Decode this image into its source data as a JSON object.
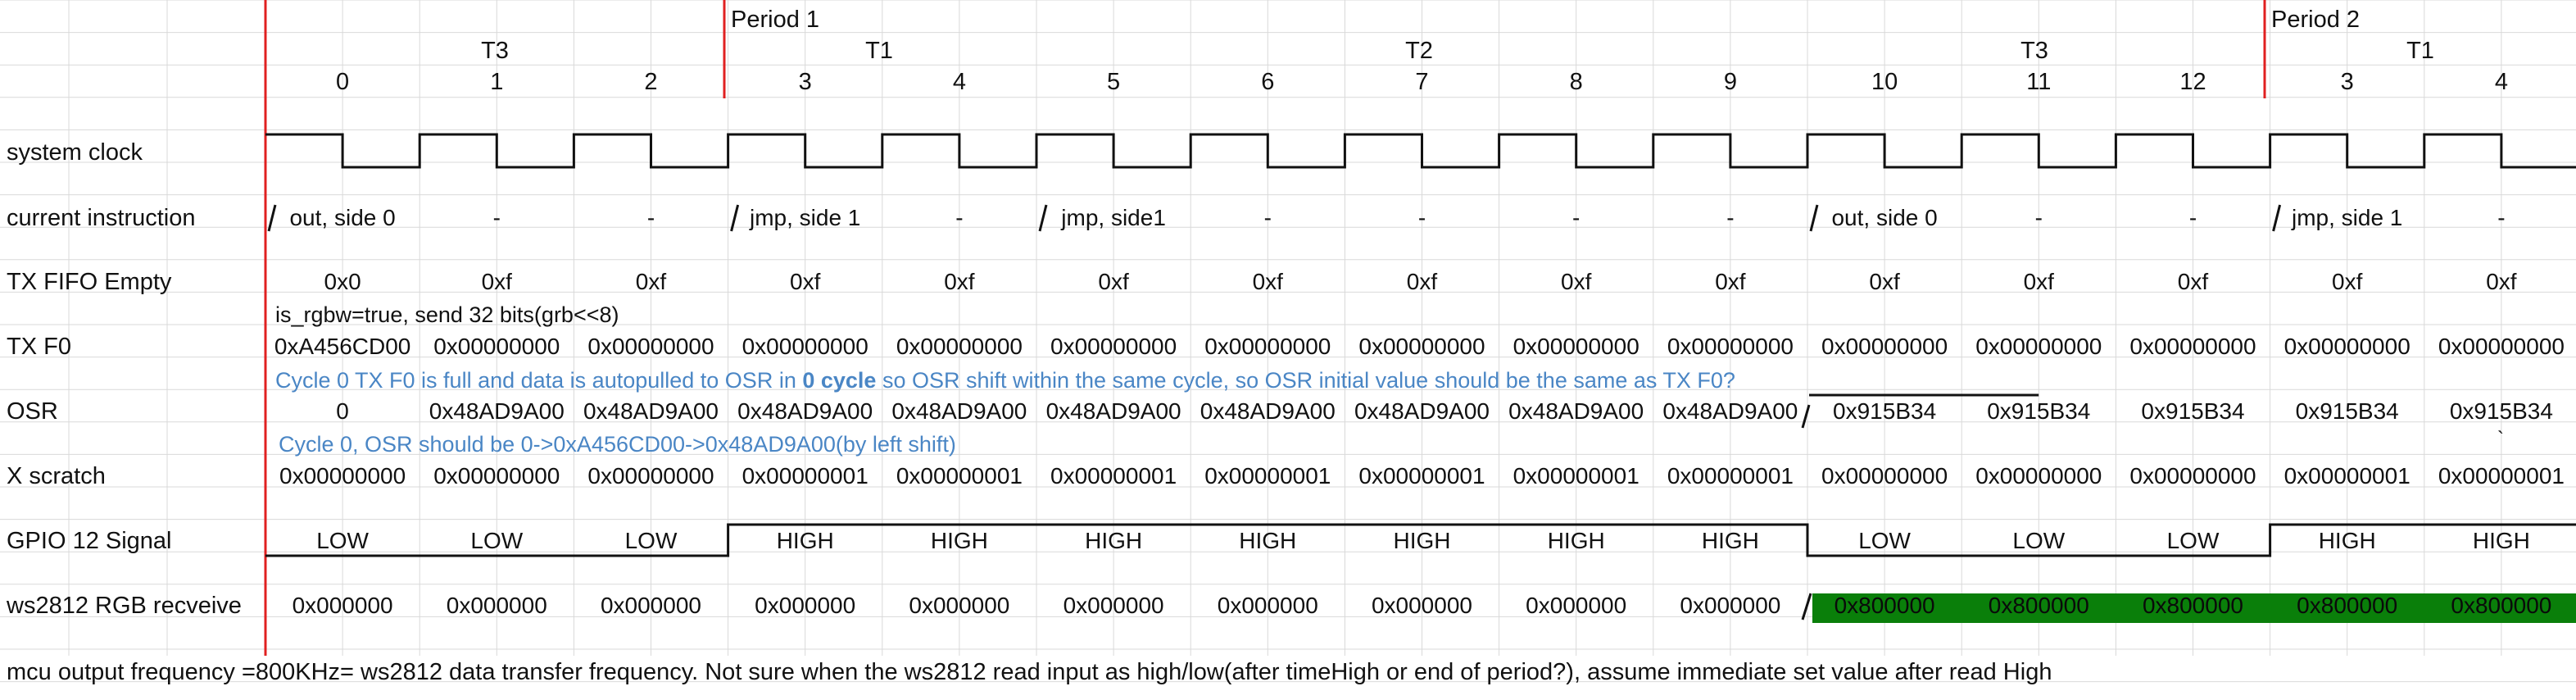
{
  "header": {
    "periods": [
      "Period 1",
      "Period 2"
    ],
    "t_labels": [
      "T3",
      "T1",
      "T2",
      "T3",
      "T1"
    ],
    "cycles": [
      "0",
      "1",
      "2",
      "3",
      "4",
      "5",
      "6",
      "7",
      "8",
      "9",
      "10",
      "11",
      "12",
      "3",
      "4"
    ]
  },
  "rows": {
    "system_clock": "system clock",
    "current_instruction": "current instruction",
    "tx_fifo_empty": "TX FIFO Empty",
    "tx_f0": "TX F0",
    "osr": "OSR",
    "x_scratch": "X scratch",
    "gpio12": "GPIO 12 Signal",
    "ws2812": "ws2812 RGB recveive"
  },
  "instructions": [
    "out, side 0",
    "-",
    "-",
    "jmp, side 1",
    "-",
    "jmp, side1",
    "-",
    "-",
    "-",
    "-",
    "out, side 0",
    "-",
    "-",
    "jmp, side 1",
    "-"
  ],
  "tx_fifo_empty": [
    "0x0",
    "0xf",
    "0xf",
    "0xf",
    "0xf",
    "0xf",
    "0xf",
    "0xf",
    "0xf",
    "0xf",
    "0xf",
    "0xf",
    "0xf",
    "0xf",
    "0xf"
  ],
  "tx_f0": [
    "0xA456CD00",
    "0x00000000",
    "0x00000000",
    "0x00000000",
    "0x00000000",
    "0x00000000",
    "0x00000000",
    "0x00000000",
    "0x00000000",
    "0x00000000",
    "0x00000000",
    "0x00000000",
    "0x00000000",
    "0x00000000",
    "0x00000000"
  ],
  "osr": [
    "0",
    "0x48AD9A00",
    "0x48AD9A00",
    "0x48AD9A00",
    "0x48AD9A00",
    "0x48AD9A00",
    "0x48AD9A00",
    "0x48AD9A00",
    "0x48AD9A00",
    "0x48AD9A00",
    "0x915B34",
    "0x915B34",
    "0x915B34",
    "0x915B34",
    "0x915B34"
  ],
  "x_scratch": [
    "0x00000000",
    "0x00000000",
    "0x00000000",
    "0x00000001",
    "0x00000001",
    "0x00000001",
    "0x00000001",
    "0x00000001",
    "0x00000001",
    "0x00000001",
    "0x00000000",
    "0x00000000",
    "0x00000000",
    "0x00000001",
    "0x00000001"
  ],
  "gpio12": [
    "LOW",
    "LOW",
    "LOW",
    "HIGH",
    "HIGH",
    "HIGH",
    "HIGH",
    "HIGH",
    "HIGH",
    "HIGH",
    "LOW",
    "LOW",
    "LOW",
    "HIGH",
    "HIGH"
  ],
  "ws2812": [
    "0x000000",
    "0x000000",
    "0x000000",
    "0x000000",
    "0x000000",
    "0x000000",
    "0x000000",
    "0x000000",
    "0x000000",
    "0x000000",
    "0x800000",
    "0x800000",
    "0x800000",
    "0x800000",
    "0x800000"
  ],
  "notes": {
    "rgbw": "is_rgbw=true, send 32 bits(grb<<8)",
    "tx_note_pre": "Cycle 0 TX F0 is full and data is autopulled to OSR in ",
    "tx_note_bold": "0 cycle",
    "tx_note_post": " so OSR shift within the same cycle, so OSR initial value should be the same as TX F0?",
    "osr_note": "Cycle 0, OSR should be 0->0xA456CD00->0x48AD9A00(by left shift)",
    "footer": "mcu output frequency =800KHz= ws2812 data transfer frequency. Not sure when the ws2812 read input as high/low(after timeHigh or end of period?), assume immediate set value after read High",
    "stray_mark": "`"
  },
  "colors": {
    "grid": "#d9d9d9",
    "period_line": "#e02020",
    "note_blue": "#4a86c5",
    "received_green": "#0a7f0a",
    "signal": "#111111"
  }
}
